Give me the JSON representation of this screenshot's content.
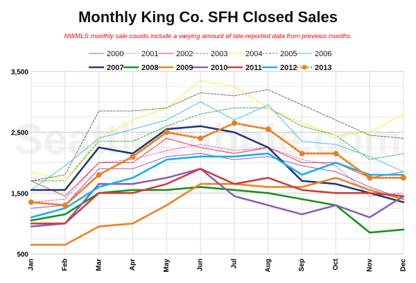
{
  "chart_data": {
    "type": "line",
    "title": "Monthly King Co. SFH Closed Sales",
    "subtitle": "NWMLS monthly sale counts include a varying amount of late-reported data from previous months.",
    "watermark": "SeattleBubble.com",
    "categories": [
      "Jan",
      "Feb",
      "Mar",
      "Apr",
      "May",
      "Jun",
      "Jul",
      "Aug",
      "Sep",
      "Oct",
      "Nov",
      "Dec"
    ],
    "ylim": [
      500,
      3500
    ],
    "yticks": [
      "500",
      "1,500",
      "2,500",
      "3,500"
    ],
    "ytick_values": [
      500,
      1500,
      2500,
      3500
    ],
    "grid": true,
    "legend_position": "top",
    "series": [
      {
        "name": "2000",
        "color": "#a050c0",
        "style": "thin-solid",
        "values": [
          1250,
          1300,
          1900,
          1900,
          2100,
          2150,
          2050,
          2100,
          1950,
          1850,
          1600,
          1400
        ]
      },
      {
        "name": "2001",
        "color": "#e060e0",
        "style": "thin-dotted",
        "values": [
          1350,
          1400,
          2000,
          2050,
          2200,
          2300,
          2200,
          2250,
          2050,
          1950,
          1450,
          1500
        ]
      },
      {
        "name": "2002",
        "color": "#e04040",
        "style": "thin-solid",
        "values": [
          1700,
          1450,
          2000,
          2000,
          2400,
          2250,
          2150,
          2250,
          2000,
          2000,
          1750,
          1850
        ]
      },
      {
        "name": "2003",
        "color": "#40a040",
        "style": "thin-dotted",
        "values": [
          1700,
          1700,
          2350,
          2350,
          2600,
          2800,
          2900,
          2900,
          2600,
          2450,
          2050,
          2150
        ]
      },
      {
        "name": "2004",
        "color": "#f0f040",
        "style": "thin-solid",
        "values": [
          1850,
          1700,
          2400,
          2700,
          2900,
          3350,
          3250,
          2900,
          2650,
          2450,
          2500,
          2800
        ]
      },
      {
        "name": "2005",
        "color": "#806040",
        "style": "thin-dotted",
        "values": [
          1700,
          1800,
          2850,
          2850,
          2900,
          3150,
          3100,
          3200,
          2950,
          2700,
          2450,
          2400
        ]
      },
      {
        "name": "2006",
        "color": "#40c0e0",
        "style": "thin-solid",
        "values": [
          1550,
          1950,
          2400,
          2550,
          2700,
          3000,
          2700,
          2950,
          2350,
          2300,
          2100,
          1850
        ]
      },
      {
        "name": "2007",
        "color": "#203a70",
        "style": "thick-solid",
        "values": [
          1550,
          1550,
          2250,
          2150,
          2550,
          2600,
          2500,
          2250,
          1700,
          1650,
          1500,
          1350
        ]
      },
      {
        "name": "2008",
        "color": "#189018",
        "style": "thick-solid",
        "values": [
          1050,
          1150,
          1500,
          1550,
          1550,
          1600,
          1550,
          1500,
          1400,
          1300,
          850,
          900
        ]
      },
      {
        "name": "2009",
        "color": "#f08020",
        "style": "thick-solid",
        "values": [
          650,
          650,
          950,
          1000,
          1300,
          1650,
          1650,
          1600,
          1600,
          1750,
          1550,
          1400
        ]
      },
      {
        "name": "2010",
        "color": "#8c60b0",
        "style": "thick-solid",
        "values": [
          950,
          1000,
          1650,
          1650,
          1750,
          1900,
          1450,
          1300,
          1150,
          1300,
          1100,
          1450
        ]
      },
      {
        "name": "2011",
        "color": "#c84040",
        "style": "thick-solid",
        "values": [
          1000,
          1000,
          1500,
          1500,
          1650,
          1900,
          1650,
          1750,
          1550,
          1500,
          1500,
          1450
        ]
      },
      {
        "name": "2012",
        "color": "#18b0e8",
        "style": "thick-solid",
        "values": [
          1100,
          1250,
          1600,
          1750,
          2050,
          2100,
          2100,
          2150,
          1800,
          2000,
          1800,
          1800
        ]
      },
      {
        "name": "2013",
        "color": "#e88020",
        "style": "thick-dotted-markers",
        "values": [
          1350,
          1300,
          1800,
          2100,
          2500,
          2400,
          2650,
          2550,
          2150,
          2150,
          1750,
          1750
        ]
      }
    ]
  }
}
